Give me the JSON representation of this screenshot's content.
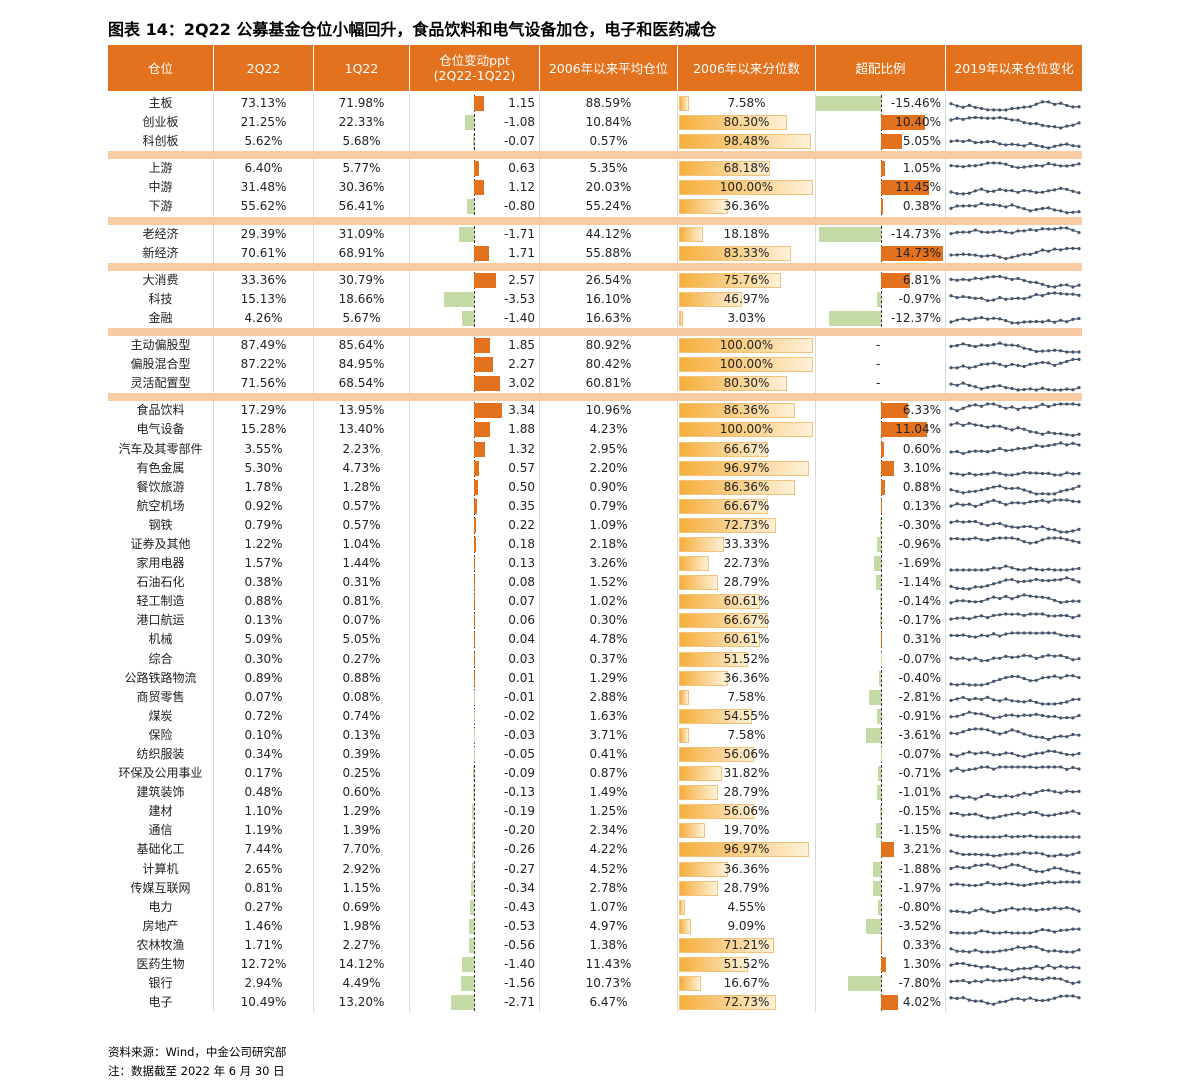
{
  "title": "图表 14：2Q22 公募基金仓位小幅回升，食品饮料和电气设备加仓，电子和医药减仓",
  "headers": [
    "仓位",
    "2Q22",
    "1Q22",
    "仓位变动ppt\n(2Q22-1Q22)",
    "2006年以来平均仓位",
    "2006年以来分位数",
    "超配比例",
    "2019年以来仓位变化"
  ],
  "groups": [
    [
      [
        "主板",
        "73.13%",
        "71.98%",
        "1.15",
        "88.59%",
        "7.58%",
        "-15.46%"
      ],
      [
        "创业板",
        "21.25%",
        "22.33%",
        "-1.08",
        "10.84%",
        "80.30%",
        "10.40%"
      ],
      [
        "科创板",
        "5.62%",
        "5.68%",
        "-0.07",
        "0.57%",
        "98.48%",
        "5.05%"
      ]
    ],
    [
      [
        "上游",
        "6.40%",
        "5.77%",
        "0.63",
        "5.35%",
        "68.18%",
        "1.05%"
      ],
      [
        "中游",
        "31.48%",
        "30.36%",
        "1.12",
        "20.03%",
        "100.00%",
        "11.45%"
      ],
      [
        "下游",
        "55.62%",
        "56.41%",
        "-0.80",
        "55.24%",
        "36.36%",
        "0.38%"
      ]
    ],
    [
      [
        "老经济",
        "29.39%",
        "31.09%",
        "-1.71",
        "44.12%",
        "18.18%",
        "-14.73%"
      ],
      [
        "新经济",
        "70.61%",
        "68.91%",
        "1.71",
        "55.88%",
        "83.33%",
        "14.73%"
      ]
    ],
    [
      [
        "大消费",
        "33.36%",
        "30.79%",
        "2.57",
        "26.54%",
        "75.76%",
        "6.81%"
      ],
      [
        "科技",
        "15.13%",
        "18.66%",
        "-3.53",
        "16.10%",
        "46.97%",
        "-0.97%"
      ],
      [
        "金融",
        "4.26%",
        "5.67%",
        "-1.40",
        "16.63%",
        "3.03%",
        "-12.37%"
      ]
    ],
    [
      [
        "主动偏股型",
        "87.49%",
        "85.64%",
        "1.85",
        "80.92%",
        "100.00%",
        "-"
      ],
      [
        "偏股混合型",
        "87.22%",
        "84.95%",
        "2.27",
        "80.42%",
        "100.00%",
        "-"
      ],
      [
        "灵活配置型",
        "71.56%",
        "68.54%",
        "3.02",
        "60.81%",
        "80.30%",
        "-"
      ]
    ],
    [
      [
        "食品饮料",
        "17.29%",
        "13.95%",
        "3.34",
        "10.96%",
        "86.36%",
        "6.33%"
      ],
      [
        "电气设备",
        "15.28%",
        "13.40%",
        "1.88",
        "4.23%",
        "100.00%",
        "11.04%"
      ],
      [
        "汽车及其零部件",
        "3.55%",
        "2.23%",
        "1.32",
        "2.95%",
        "66.67%",
        "0.60%"
      ],
      [
        "有色金属",
        "5.30%",
        "4.73%",
        "0.57",
        "2.20%",
        "96.97%",
        "3.10%"
      ],
      [
        "餐饮旅游",
        "1.78%",
        "1.28%",
        "0.50",
        "0.90%",
        "86.36%",
        "0.88%"
      ],
      [
        "航空机场",
        "0.92%",
        "0.57%",
        "0.35",
        "0.79%",
        "66.67%",
        "0.13%"
      ],
      [
        "钢铁",
        "0.79%",
        "0.57%",
        "0.22",
        "1.09%",
        "72.73%",
        "-0.30%"
      ],
      [
        "证券及其他",
        "1.22%",
        "1.04%",
        "0.18",
        "2.18%",
        "33.33%",
        "-0.96%"
      ],
      [
        "家用电器",
        "1.57%",
        "1.44%",
        "0.13",
        "3.26%",
        "22.73%",
        "-1.69%"
      ],
      [
        "石油石化",
        "0.38%",
        "0.31%",
        "0.08",
        "1.52%",
        "28.79%",
        "-1.14%"
      ],
      [
        "轻工制造",
        "0.88%",
        "0.81%",
        "0.07",
        "1.02%",
        "60.61%",
        "-0.14%"
      ],
      [
        "港口航运",
        "0.13%",
        "0.07%",
        "0.06",
        "0.30%",
        "66.67%",
        "-0.17%"
      ],
      [
        "机械",
        "5.09%",
        "5.05%",
        "0.04",
        "4.78%",
        "60.61%",
        "0.31%"
      ],
      [
        "综合",
        "0.30%",
        "0.27%",
        "0.03",
        "0.37%",
        "51.52%",
        "-0.07%"
      ],
      [
        "公路铁路物流",
        "0.89%",
        "0.88%",
        "0.01",
        "1.29%",
        "36.36%",
        "-0.40%"
      ],
      [
        "商贸零售",
        "0.07%",
        "0.08%",
        "-0.01",
        "2.88%",
        "7.58%",
        "-2.81%"
      ],
      [
        "煤炭",
        "0.72%",
        "0.74%",
        "-0.02",
        "1.63%",
        "54.55%",
        "-0.91%"
      ],
      [
        "保险",
        "0.10%",
        "0.13%",
        "-0.03",
        "3.71%",
        "7.58%",
        "-3.61%"
      ],
      [
        "纺织服装",
        "0.34%",
        "0.39%",
        "-0.05",
        "0.41%",
        "56.06%",
        "-0.07%"
      ],
      [
        "环保及公用事业",
        "0.17%",
        "0.25%",
        "-0.09",
        "0.87%",
        "31.82%",
        "-0.71%"
      ],
      [
        "建筑装饰",
        "0.48%",
        "0.60%",
        "-0.13",
        "1.49%",
        "28.79%",
        "-1.01%"
      ],
      [
        "建材",
        "1.10%",
        "1.29%",
        "-0.19",
        "1.25%",
        "56.06%",
        "-0.15%"
      ],
      [
        "通信",
        "1.19%",
        "1.39%",
        "-0.20",
        "2.34%",
        "19.70%",
        "-1.15%"
      ],
      [
        "基础化工",
        "7.44%",
        "7.70%",
        "-0.26",
        "4.22%",
        "96.97%",
        "3.21%"
      ],
      [
        "计算机",
        "2.65%",
        "2.92%",
        "-0.27",
        "4.52%",
        "36.36%",
        "-1.88%"
      ],
      [
        "传媒互联网",
        "0.81%",
        "1.15%",
        "-0.34",
        "2.78%",
        "28.79%",
        "-1.97%"
      ],
      [
        "电力",
        "0.27%",
        "0.69%",
        "-0.43",
        "1.07%",
        "4.55%",
        "-0.80%"
      ],
      [
        "房地产",
        "1.46%",
        "1.98%",
        "-0.53",
        "4.97%",
        "9.09%",
        "-3.52%"
      ],
      [
        "农林牧渔",
        "1.71%",
        "2.27%",
        "-0.56",
        "1.38%",
        "71.21%",
        "0.33%"
      ],
      [
        "医药生物",
        "12.72%",
        "14.12%",
        "-1.40",
        "11.43%",
        "51.52%",
        "1.30%"
      ],
      [
        "银行",
        "2.94%",
        "4.49%",
        "-1.56",
        "10.73%",
        "16.67%",
        "-7.80%"
      ],
      [
        "电子",
        "10.49%",
        "13.20%",
        "-2.71",
        "6.47%",
        "72.73%",
        "4.02%"
      ]
    ]
  ],
  "footer": [
    "资料来源：Wind，中金公司研究部",
    "注：数据截至 2022 年 6 月 30 日"
  ]
}
